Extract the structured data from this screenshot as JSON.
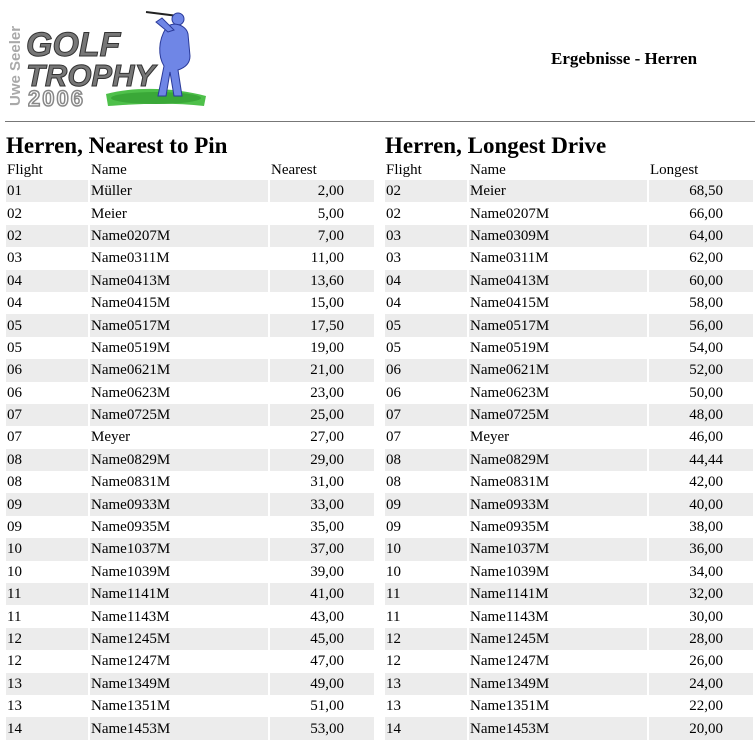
{
  "header": {
    "logo_text": {
      "line1": "GOLF",
      "line2": "TROPHY",
      "year": "2006",
      "vertical": "Uwe Seeler"
    },
    "title": "Ergebnisse - Herren"
  },
  "nearest": {
    "heading": "Herren, Nearest to Pin",
    "columns": [
      "Flight",
      "Name",
      "Nearest"
    ],
    "rows": [
      [
        "01",
        "Müller",
        "2,00"
      ],
      [
        "02",
        "Meier",
        "5,00"
      ],
      [
        "02",
        "Name0207M",
        "7,00"
      ],
      [
        "03",
        "Name0311M",
        "11,00"
      ],
      [
        "04",
        "Name0413M",
        "13,60"
      ],
      [
        "04",
        "Name0415M",
        "15,00"
      ],
      [
        "05",
        "Name0517M",
        "17,50"
      ],
      [
        "05",
        "Name0519M",
        "19,00"
      ],
      [
        "06",
        "Name0621M",
        "21,00"
      ],
      [
        "06",
        "Name0623M",
        "23,00"
      ],
      [
        "07",
        "Name0725M",
        "25,00"
      ],
      [
        "07",
        "Meyer",
        "27,00"
      ],
      [
        "08",
        "Name0829M",
        "29,00"
      ],
      [
        "08",
        "Name0831M",
        "31,00"
      ],
      [
        "09",
        "Name0933M",
        "33,00"
      ],
      [
        "09",
        "Name0935M",
        "35,00"
      ],
      [
        "10",
        "Name1037M",
        "37,00"
      ],
      [
        "10",
        "Name1039M",
        "39,00"
      ],
      [
        "11",
        "Name1141M",
        "41,00"
      ],
      [
        "11",
        "Name1143M",
        "43,00"
      ],
      [
        "12",
        "Name1245M",
        "45,00"
      ],
      [
        "12",
        "Name1247M",
        "47,00"
      ],
      [
        "13",
        "Name1349M",
        "49,00"
      ],
      [
        "13",
        "Name1351M",
        "51,00"
      ],
      [
        "14",
        "Name1453M",
        "53,00"
      ]
    ]
  },
  "longest": {
    "heading": "Herren, Longest Drive",
    "columns": [
      "Flight",
      "Name",
      "Longest"
    ],
    "rows": [
      [
        "02",
        "Meier",
        "68,50"
      ],
      [
        "02",
        "Name0207M",
        "66,00"
      ],
      [
        "03",
        "Name0309M",
        "64,00"
      ],
      [
        "03",
        "Name0311M",
        "62,00"
      ],
      [
        "04",
        "Name0413M",
        "60,00"
      ],
      [
        "04",
        "Name0415M",
        "58,00"
      ],
      [
        "05",
        "Name0517M",
        "56,00"
      ],
      [
        "05",
        "Name0519M",
        "54,00"
      ],
      [
        "06",
        "Name0621M",
        "52,00"
      ],
      [
        "06",
        "Name0623M",
        "50,00"
      ],
      [
        "07",
        "Name0725M",
        "48,00"
      ],
      [
        "07",
        "Meyer",
        "46,00"
      ],
      [
        "08",
        "Name0829M",
        "44,44"
      ],
      [
        "08",
        "Name0831M",
        "42,00"
      ],
      [
        "09",
        "Name0933M",
        "40,00"
      ],
      [
        "09",
        "Name0935M",
        "38,00"
      ],
      [
        "10",
        "Name1037M",
        "36,00"
      ],
      [
        "10",
        "Name1039M",
        "34,00"
      ],
      [
        "11",
        "Name1141M",
        "32,00"
      ],
      [
        "11",
        "Name1143M",
        "30,00"
      ],
      [
        "12",
        "Name1245M",
        "28,00"
      ],
      [
        "12",
        "Name1247M",
        "26,00"
      ],
      [
        "13",
        "Name1349M",
        "24,00"
      ],
      [
        "13",
        "Name1351M",
        "22,00"
      ],
      [
        "14",
        "Name1453M",
        "20,00"
      ]
    ]
  }
}
